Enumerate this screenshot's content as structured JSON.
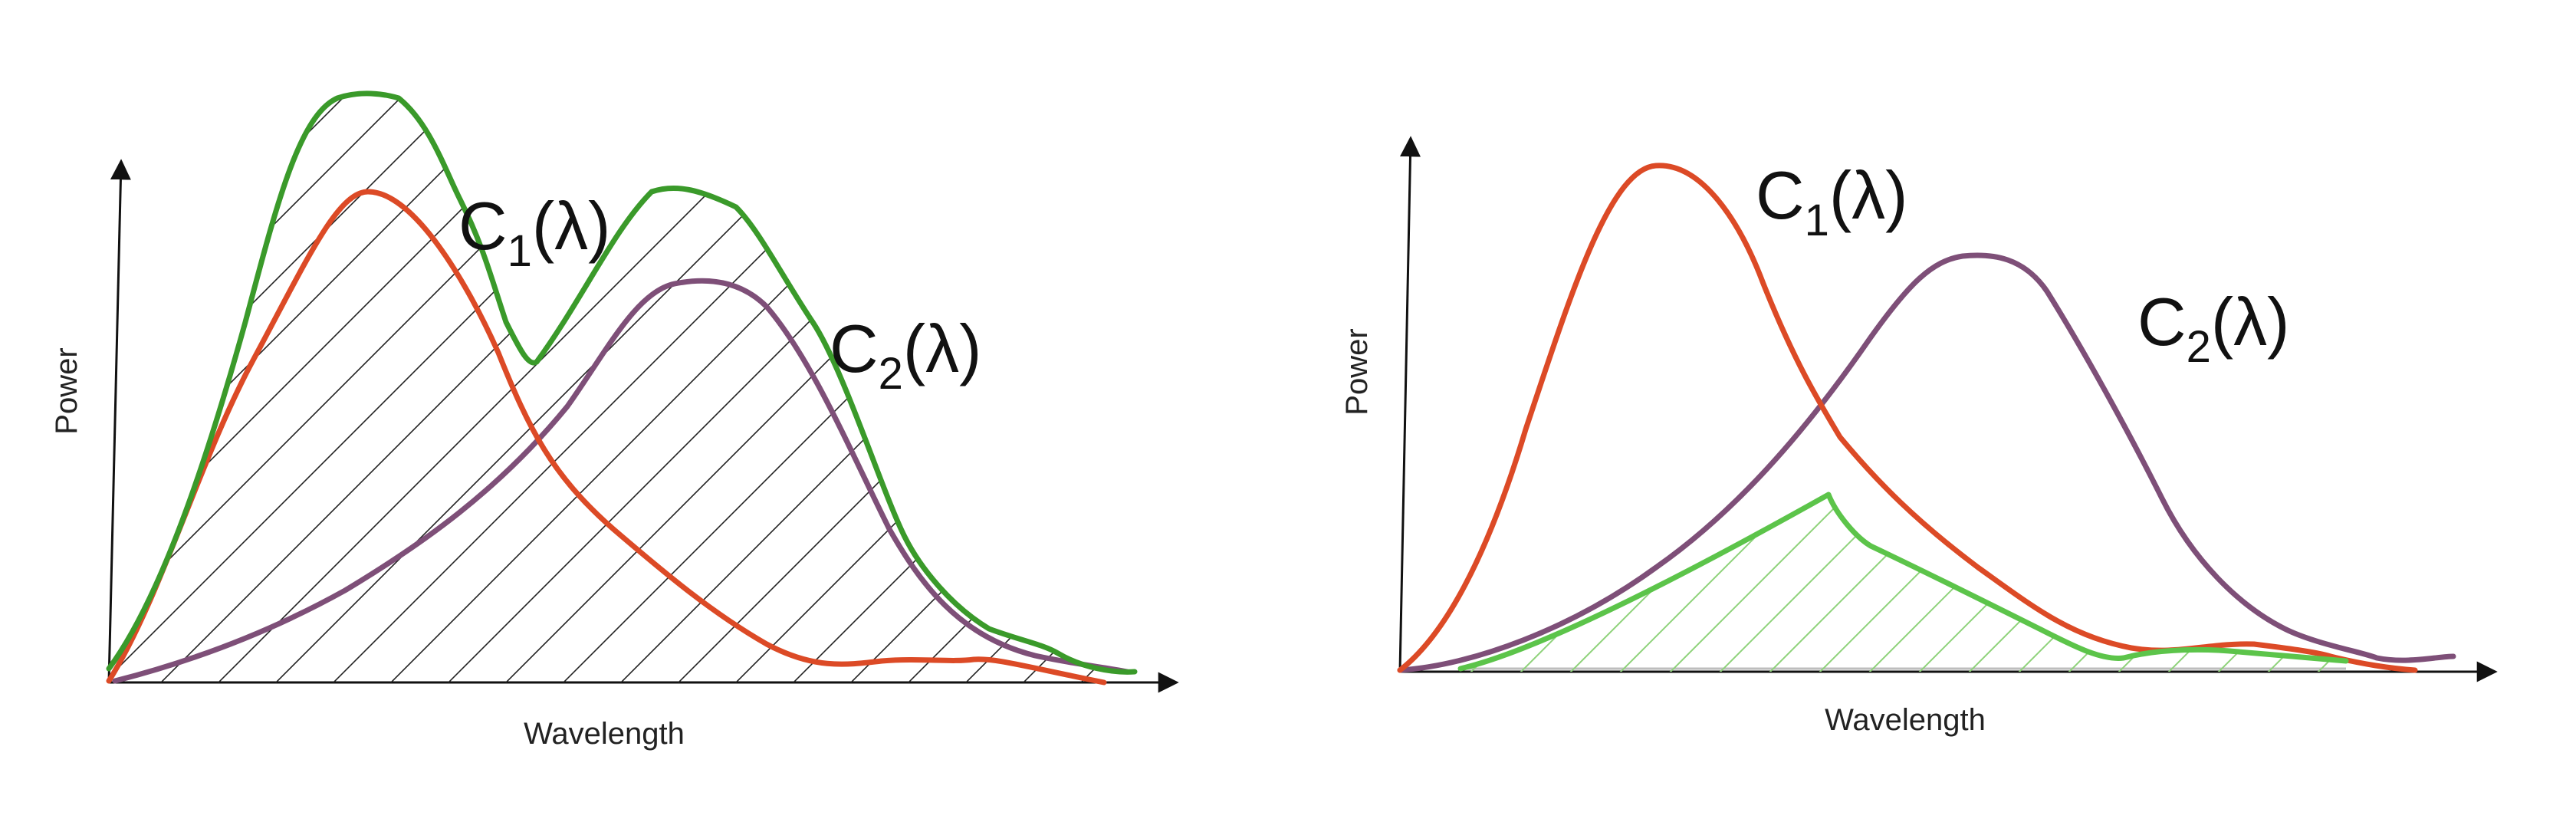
{
  "panels": [
    {
      "id": "additive",
      "y_axis_label": "Power",
      "x_axis_label": "Wavelength",
      "curve_labels": {
        "c1": {
          "base": "C",
          "sub": "1",
          "arg": "(λ)"
        },
        "c2": {
          "base": "C",
          "sub": "2",
          "arg": "(λ)"
        }
      },
      "curves": [
        {
          "name": "C1",
          "color": "#dc4a26"
        },
        {
          "name": "C2",
          "color": "#7e4f78"
        },
        {
          "name": "sum",
          "color": "#3a9a2a"
        }
      ],
      "hatch": {
        "color": "#222222"
      }
    },
    {
      "id": "subtractive",
      "y_axis_label": "Power",
      "x_axis_label": "Wavelength",
      "curve_labels": {
        "c1": {
          "base": "C",
          "sub": "1",
          "arg": "(λ)"
        },
        "c2": {
          "base": "C",
          "sub": "2",
          "arg": "(λ)"
        }
      },
      "curves": [
        {
          "name": "C1",
          "color": "#dc4a26"
        },
        {
          "name": "C2",
          "color": "#7e4f78"
        },
        {
          "name": "product",
          "color": "#5cc44a"
        }
      ],
      "hatch": {
        "color": "#8ed27a"
      }
    }
  ]
}
